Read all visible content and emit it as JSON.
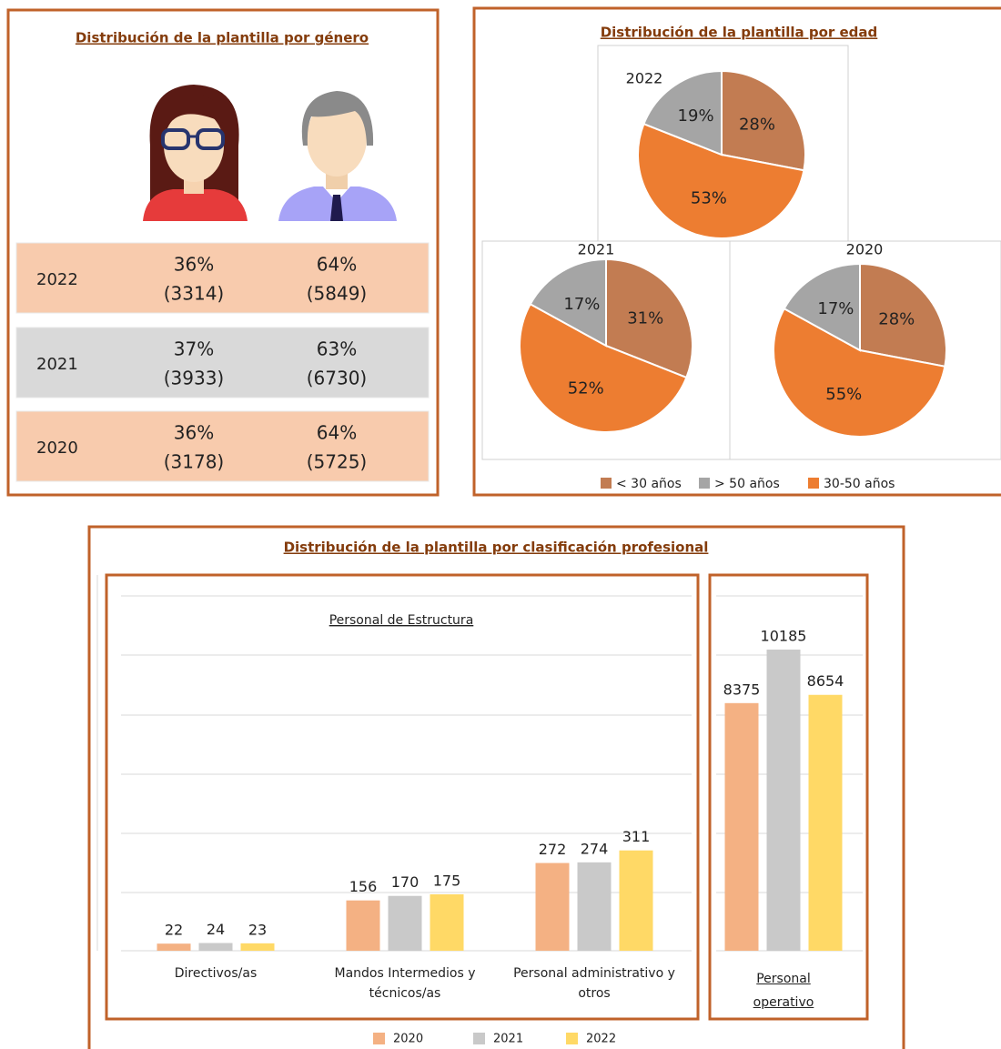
{
  "gender": {
    "title": "Distribución de la plantilla por género",
    "rows": [
      {
        "year": "2022",
        "women": "36%",
        "women_count": "(3314)",
        "men": "64%",
        "men_count": "(5849)"
      },
      {
        "year": "2021",
        "women": "37%",
        "women_count": "(3933)",
        "men": "63%",
        "men_count": "(6730)"
      },
      {
        "year": "2020",
        "women": "36%",
        "women_count": "(3178)",
        "men": "64%",
        "men_count": "(5725)"
      }
    ]
  },
  "age_title": "Distribución de la plantilla por edad",
  "chart_data": [
    {
      "type": "pie",
      "title": "2022",
      "categories": [
        "< 30 años",
        "> 50 años",
        "30-50 años"
      ],
      "values": [
        28,
        19,
        53
      ],
      "value_labels": [
        "28%",
        "19%",
        "53%"
      ],
      "colors": [
        "#c27c52",
        "#a5a5a5",
        "#ed7d31"
      ]
    },
    {
      "type": "pie",
      "title": "2021",
      "categories": [
        "< 30 años",
        "> 50 años",
        "30-50 años"
      ],
      "values": [
        31,
        17,
        52
      ],
      "value_labels": [
        "31%",
        "17%",
        "52%"
      ],
      "colors": [
        "#c27c52",
        "#a5a5a5",
        "#ed7d31"
      ]
    },
    {
      "type": "pie",
      "title": "2020",
      "categories": [
        "< 30 años",
        "> 50 años",
        "30-50 años"
      ],
      "values": [
        28,
        17,
        55
      ],
      "value_labels": [
        "28%",
        "17%",
        "55%"
      ],
      "colors": [
        "#c27c52",
        "#a5a5a5",
        "#ed7d31"
      ]
    },
    {
      "type": "bar",
      "title": "Distribución de la plantilla por clasificación profesional",
      "annotation": "Personal de Estructura",
      "categories": [
        "Directivos/as",
        "Mandos Intermedios y técnicos/as",
        "Personal administrativo y otros"
      ],
      "series": [
        {
          "name": "2020",
          "color": "#f4b183",
          "values": [
            22,
            156,
            272
          ]
        },
        {
          "name": "2021",
          "color": "#c9c9c9",
          "values": [
            24,
            170,
            274
          ]
        },
        {
          "name": "2022",
          "color": "#ffd966",
          "values": [
            23,
            175,
            311
          ]
        }
      ],
      "ylim": [
        0,
        1100
      ],
      "grid": true
    },
    {
      "type": "bar",
      "categories": [
        "Personal operativo"
      ],
      "series": [
        {
          "color": "#f4b183",
          "values": [
            8375
          ]
        },
        {
          "color": "#c9c9c9",
          "values": [
            10185
          ]
        },
        {
          "color": "#ffd966",
          "values": [
            8654
          ]
        }
      ],
      "ylim": [
        0,
        12000
      ],
      "grid": true
    }
  ]
}
